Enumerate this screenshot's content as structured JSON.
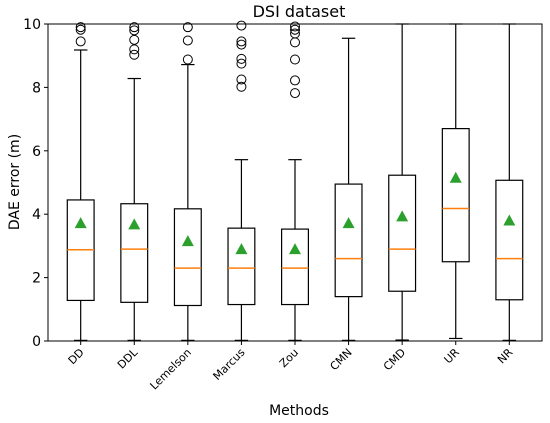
{
  "chart_data": {
    "type": "box",
    "title": "DSI dataset",
    "xlabel": "Methods",
    "ylabel": "DAE error (m)",
    "ylim": [
      0,
      10
    ],
    "yticks": [
      0,
      2,
      4,
      6,
      8,
      10
    ],
    "grid": false,
    "categories": [
      "DD",
      "DDL",
      "Lemelson",
      "Marcus",
      "Zou",
      "CMN",
      "CMD",
      "UR",
      "NR"
    ],
    "boxes": [
      {
        "whisker_low": 0.02,
        "q1": 1.28,
        "median": 2.88,
        "q3": 4.45,
        "whisker_high": 9.18,
        "mean": 3.72,
        "outliers": [
          9.45,
          9.82,
          9.9
        ]
      },
      {
        "whisker_low": 0.02,
        "q1": 1.22,
        "median": 2.9,
        "q3": 4.33,
        "whisker_high": 8.28,
        "mean": 3.68,
        "outliers": [
          9.03,
          9.2,
          9.5,
          9.8,
          9.9
        ]
      },
      {
        "whisker_low": 0.02,
        "q1": 1.12,
        "median": 2.3,
        "q3": 4.17,
        "whisker_high": 8.72,
        "mean": 3.15,
        "outliers": [
          8.88,
          9.48,
          9.9
        ]
      },
      {
        "whisker_low": 0.02,
        "q1": 1.15,
        "median": 2.3,
        "q3": 3.56,
        "whisker_high": 5.72,
        "mean": 2.9,
        "outliers": [
          8.02,
          8.25,
          8.75,
          8.9,
          9.35,
          9.45,
          9.95
        ]
      },
      {
        "whisker_low": 0.02,
        "q1": 1.15,
        "median": 2.3,
        "q3": 3.53,
        "whisker_high": 5.72,
        "mean": 2.9,
        "outliers": [
          7.82,
          8.22,
          8.88,
          9.42,
          9.7,
          9.82,
          9.92
        ]
      },
      {
        "whisker_low": 0.02,
        "q1": 1.4,
        "median": 2.6,
        "q3": 4.95,
        "whisker_high": 9.55,
        "mean": 3.72,
        "outliers": []
      },
      {
        "whisker_low": 0.03,
        "q1": 1.57,
        "median": 2.9,
        "q3": 5.23,
        "whisker_high": 10.0,
        "mean": 3.93,
        "outliers": []
      },
      {
        "whisker_low": 0.08,
        "q1": 2.5,
        "median": 4.18,
        "q3": 6.7,
        "whisker_high": 10.0,
        "mean": 5.15,
        "outliers": []
      },
      {
        "whisker_low": 0.02,
        "q1": 1.3,
        "median": 2.6,
        "q3": 5.07,
        "whisker_high": 10.0,
        "mean": 3.8,
        "outliers": []
      }
    ],
    "colors": {
      "box": "#000000",
      "median": "#ff7f0e",
      "mean": "#2ca02c",
      "outlier": "#000000"
    }
  }
}
